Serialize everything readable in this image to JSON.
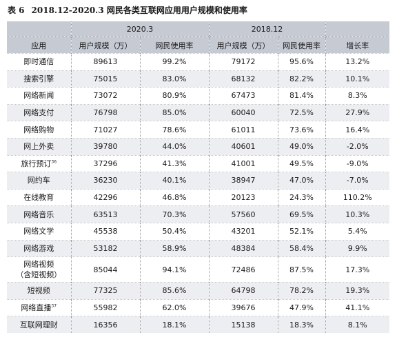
{
  "title": {
    "number": "表 6",
    "text": "2018.12-2020.3 网民各类互联网应用用户规模和使用率"
  },
  "header": {
    "period1": "2020.3",
    "period2": "2018.12",
    "columns": [
      "应用",
      "用户规模（万）",
      "网民使用率",
      "用户规模（万）",
      "网民使用率",
      "增长率"
    ]
  },
  "rows": [
    {
      "app": "即时通信",
      "note": "",
      "users_2020": "89613",
      "rate_2020": "99.2%",
      "users_2018": "79172",
      "rate_2018": "95.6%",
      "growth": "13.2%"
    },
    {
      "app": "搜索引擎",
      "note": "",
      "users_2020": "75015",
      "rate_2020": "83.0%",
      "users_2018": "68132",
      "rate_2018": "82.2%",
      "growth": "10.1%"
    },
    {
      "app": "网络新闻",
      "note": "",
      "users_2020": "73072",
      "rate_2020": "80.9%",
      "users_2018": "67473",
      "rate_2018": "81.4%",
      "growth": "8.3%"
    },
    {
      "app": "网络支付",
      "note": "",
      "users_2020": "76798",
      "rate_2020": "85.0%",
      "users_2018": "60040",
      "rate_2018": "72.5%",
      "growth": "27.9%"
    },
    {
      "app": "网络购物",
      "note": "",
      "users_2020": "71027",
      "rate_2020": "78.6%",
      "users_2018": "61011",
      "rate_2018": "73.6%",
      "growth": "16.4%"
    },
    {
      "app": "网上外卖",
      "note": "",
      "users_2020": "39780",
      "rate_2020": "44.0%",
      "users_2018": "40601",
      "rate_2018": "49.0%",
      "growth": "-2.0%"
    },
    {
      "app": "旅行预订",
      "note": "36",
      "users_2020": "37296",
      "rate_2020": "41.3%",
      "users_2018": "41001",
      "rate_2018": "49.5%",
      "growth": "-9.0%"
    },
    {
      "app": "网约车",
      "note": "",
      "users_2020": "36230",
      "rate_2020": "40.1%",
      "users_2018": "38947",
      "rate_2018": "47.0%",
      "growth": "-7.0%"
    },
    {
      "app": "在线教育",
      "note": "",
      "users_2020": "42296",
      "rate_2020": "46.8%",
      "users_2018": "20123",
      "rate_2018": "24.3%",
      "growth": "110.2%"
    },
    {
      "app": "网络音乐",
      "note": "",
      "users_2020": "63513",
      "rate_2020": "70.3%",
      "users_2018": "57560",
      "rate_2018": "69.5%",
      "growth": "10.3%"
    },
    {
      "app": "网络文学",
      "note": "",
      "users_2020": "45538",
      "rate_2020": "50.4%",
      "users_2018": "43201",
      "rate_2018": "52.1%",
      "growth": "5.4%"
    },
    {
      "app": "网络游戏",
      "note": "",
      "users_2020": "53182",
      "rate_2020": "58.9%",
      "users_2018": "48384",
      "rate_2018": "58.4%",
      "growth": "9.9%"
    },
    {
      "app": "网络视频\n（含短视频）",
      "note": "",
      "users_2020": "85044",
      "rate_2020": "94.1%",
      "users_2018": "72486",
      "rate_2018": "87.5%",
      "growth": "17.3%"
    },
    {
      "app": "短视频",
      "note": "",
      "users_2020": "77325",
      "rate_2020": "85.6%",
      "users_2018": "64798",
      "rate_2018": "78.2%",
      "growth": "19.3%"
    },
    {
      "app": "网络直播",
      "note": "37",
      "users_2020": "55982",
      "rate_2020": "62.0%",
      "users_2018": "39676",
      "rate_2018": "47.9%",
      "growth": "41.1%"
    },
    {
      "app": "互联网理财",
      "note": "",
      "users_2020": "16356",
      "rate_2020": "18.1%",
      "users_2018": "15138",
      "rate_2018": "18.3%",
      "growth": "8.1%"
    }
  ]
}
